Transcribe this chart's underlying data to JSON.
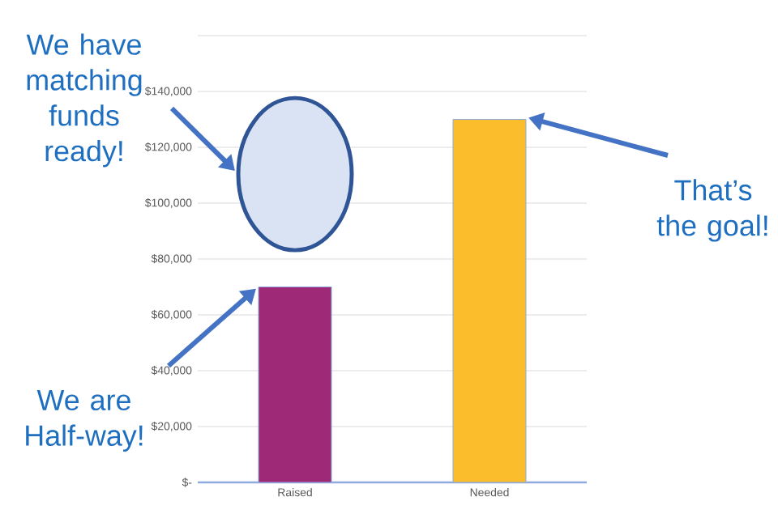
{
  "chart_data": {
    "type": "bar",
    "categories": [
      "Raised",
      "Needed"
    ],
    "values": [
      70000,
      130000
    ],
    "colors": [
      "#9e2a77",
      "#fbbd2c"
    ],
    "ylim": [
      0,
      160000
    ],
    "yticks": [
      {
        "value": 0,
        "label": "$-"
      },
      {
        "value": 20000,
        "label": "$20,000"
      },
      {
        "value": 40000,
        "label": "$40,000"
      },
      {
        "value": 60000,
        "label": "$60,000"
      },
      {
        "value": 80000,
        "label": "$80,000"
      },
      {
        "value": 100000,
        "label": "$100,000"
      },
      {
        "value": 120000,
        "label": "$120,000"
      },
      {
        "value": 140000,
        "label": "$140,000"
      },
      {
        "value": 160000,
        "label": null
      }
    ],
    "grid": "y",
    "annotations": [
      "We have matching funds ready!",
      "We are Half-way!",
      "That’s the goal!"
    ]
  }
}
